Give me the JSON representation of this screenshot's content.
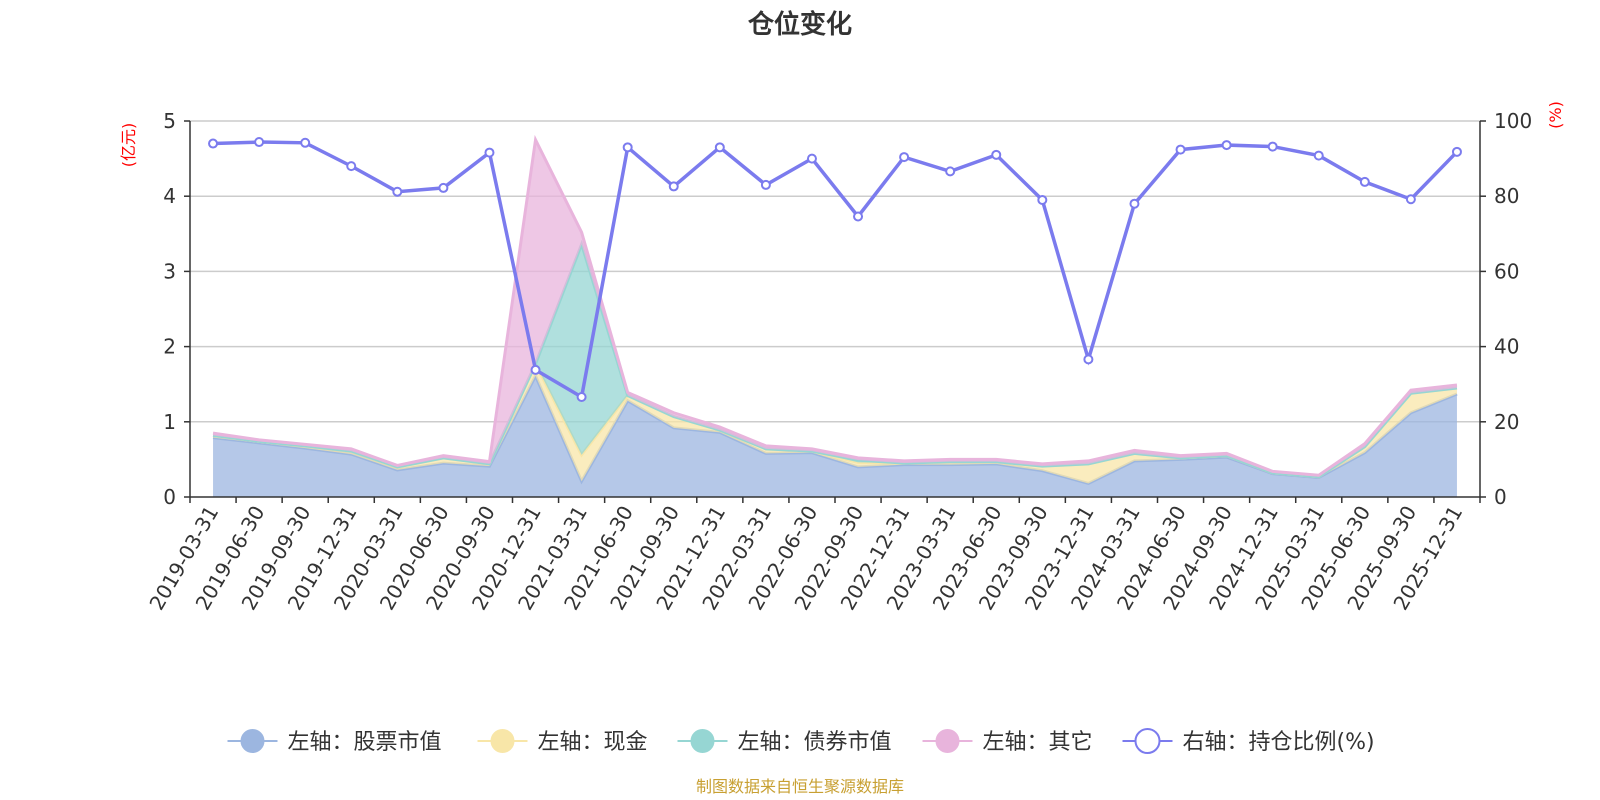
{
  "chart_data": {
    "type": "area",
    "title": "仓位变化",
    "left_axis": {
      "unit": "(亿元)",
      "range": [
        0,
        5
      ],
      "ticks": [
        "0",
        "1",
        "2",
        "3",
        "4",
        "5"
      ]
    },
    "right_axis": {
      "unit": "(%)",
      "range": [
        0,
        100
      ],
      "ticks": [
        "0",
        "20",
        "40",
        "60",
        "80",
        "100"
      ]
    },
    "categories": [
      "2019-03-31",
      "2019-06-30",
      "2019-09-30",
      "2019-12-31",
      "2020-03-31",
      "2020-06-30",
      "2020-09-30",
      "2020-12-31",
      "2021-03-31",
      "2021-06-30",
      "2021-09-30",
      "2021-12-31",
      "2022-03-31",
      "2022-06-30",
      "2022-09-30",
      "2022-12-31",
      "2023-03-31",
      "2023-06-30",
      "2023-09-30",
      "2023-12-31",
      "2024-03-31",
      "2024-06-30",
      "2024-09-30",
      "2024-12-31",
      "2025-03-31",
      "2025-06-30",
      "2025-09-30",
      "2025-12-31"
    ],
    "series": [
      {
        "name": "左轴：股票市值",
        "axis": "left",
        "kind": "area",
        "color": "#9cb6e0",
        "values": [
          0.79,
          0.72,
          0.65,
          0.57,
          0.36,
          0.45,
          0.41,
          1.61,
          0.21,
          1.28,
          0.92,
          0.86,
          0.58,
          0.59,
          0.4,
          0.43,
          0.43,
          0.44,
          0.35,
          0.18,
          0.48,
          0.5,
          0.53,
          0.31,
          0.26,
          0.59,
          1.12,
          1.37
        ]
      },
      {
        "name": "左轴：现金",
        "axis": "left",
        "kind": "area",
        "color": "#f8e6a8",
        "values": [
          0.03,
          0.02,
          0.03,
          0.04,
          0.04,
          0.07,
          0.03,
          0.16,
          0.35,
          0.07,
          0.15,
          0.03,
          0.06,
          0.02,
          0.06,
          0.02,
          0.04,
          0.03,
          0.06,
          0.26,
          0.1,
          0.02,
          0.02,
          0.01,
          0.01,
          0.08,
          0.26,
          0.08
        ]
      },
      {
        "name": "左轴：债券市值",
        "axis": "left",
        "kind": "area",
        "color": "#96d6d3",
        "values": [
          0,
          0,
          0,
          0,
          0,
          0,
          0,
          0,
          2.8,
          0,
          0,
          0,
          0,
          0,
          0.03,
          0,
          0,
          0,
          0,
          0,
          0,
          0,
          0,
          0,
          0,
          0,
          0,
          0
        ]
      },
      {
        "name": "左轴：其它",
        "axis": "left",
        "kind": "area",
        "color": "#e8b4dc",
        "values": [
          0.03,
          0.02,
          0.02,
          0.03,
          0.02,
          0.03,
          0.03,
          2.98,
          0.16,
          0.04,
          0.05,
          0.04,
          0.04,
          0.03,
          0.03,
          0.03,
          0.03,
          0.03,
          0.03,
          0.04,
          0.04,
          0.03,
          0.03,
          0.02,
          0.02,
          0.04,
          0.04,
          0.04
        ]
      },
      {
        "name": "右轴：持仓比例(%)",
        "axis": "right",
        "kind": "line",
        "color": "#7b7bee",
        "values": [
          94.0,
          94.4,
          94.2,
          88.0,
          81.2,
          82.2,
          91.6,
          33.8,
          26.6,
          93.0,
          82.6,
          93.0,
          83.0,
          90.0,
          74.6,
          90.4,
          86.6,
          91.0,
          79.0,
          36.6,
          78.0,
          92.4,
          93.6,
          93.2,
          90.8,
          83.8,
          79.2,
          91.8
        ]
      }
    ]
  },
  "source": "制图数据来自恒生聚源数据库"
}
